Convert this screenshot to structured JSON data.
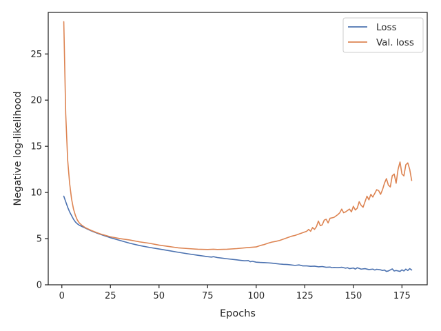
{
  "chart_data": {
    "type": "line",
    "title": "",
    "xlabel": "Epochs",
    "ylabel": "Negative log-likelihood",
    "xlim": [
      -7,
      188
    ],
    "ylim": [
      0,
      29.5
    ],
    "xticks": [
      0,
      25,
      50,
      75,
      100,
      125,
      150,
      175
    ],
    "yticks": [
      0,
      5,
      10,
      15,
      20,
      25
    ],
    "grid": false,
    "legend_position": "top-right",
    "series": [
      {
        "name": "Loss",
        "color": "#4c72b0",
        "x": [
          1,
          2,
          3,
          4,
          5,
          6,
          7,
          8,
          9,
          10,
          12,
          15,
          18,
          20,
          25,
          30,
          35,
          40,
          45,
          50,
          55,
          60,
          65,
          70,
          75,
          77,
          78,
          80,
          82,
          85,
          88,
          90,
          92,
          94,
          96,
          97,
          98,
          100,
          102,
          104,
          106,
          108,
          110,
          112,
          114,
          116,
          118,
          120,
          122,
          124,
          126,
          128,
          130,
          132,
          134,
          136,
          138,
          139,
          140,
          142,
          144,
          146,
          147,
          148,
          150,
          151,
          152,
          154,
          156,
          158,
          160,
          161,
          162,
          164,
          165,
          166,
          167,
          168,
          170,
          171,
          172,
          174,
          175,
          176,
          177,
          178,
          179,
          180
        ],
        "y": [
          9.6,
          9.0,
          8.4,
          7.9,
          7.5,
          7.1,
          6.8,
          6.6,
          6.45,
          6.35,
          6.15,
          5.85,
          5.6,
          5.45,
          5.1,
          4.8,
          4.5,
          4.25,
          4.05,
          3.88,
          3.7,
          3.52,
          3.35,
          3.2,
          3.05,
          3.0,
          3.05,
          2.95,
          2.9,
          2.82,
          2.75,
          2.7,
          2.65,
          2.6,
          2.62,
          2.5,
          2.55,
          2.45,
          2.42,
          2.4,
          2.38,
          2.35,
          2.3,
          2.25,
          2.22,
          2.2,
          2.15,
          2.1,
          2.15,
          2.05,
          2.05,
          2.0,
          2.02,
          1.95,
          1.98,
          1.9,
          1.92,
          1.85,
          1.88,
          1.85,
          1.9,
          1.8,
          1.85,
          1.75,
          1.82,
          1.7,
          1.85,
          1.7,
          1.75,
          1.65,
          1.7,
          1.6,
          1.68,
          1.62,
          1.55,
          1.6,
          1.45,
          1.5,
          1.72,
          1.5,
          1.55,
          1.45,
          1.62,
          1.5,
          1.7,
          1.55,
          1.75,
          1.6
        ]
      },
      {
        "name": "Val. loss",
        "color": "#dd8452",
        "x": [
          1,
          2,
          3,
          4,
          5,
          6,
          7,
          8,
          9,
          10,
          12,
          15,
          18,
          20,
          25,
          30,
          35,
          40,
          45,
          50,
          55,
          60,
          65,
          70,
          75,
          78,
          80,
          85,
          90,
          95,
          100,
          102,
          104,
          106,
          108,
          110,
          112,
          114,
          116,
          118,
          120,
          122,
          124,
          126,
          127,
          128,
          129,
          130,
          131,
          132,
          133,
          134,
          135,
          136,
          137,
          138,
          140,
          142,
          143,
          144,
          145,
          146,
          148,
          149,
          150,
          151,
          152,
          153,
          154,
          155,
          156,
          157,
          158,
          159,
          160,
          161,
          162,
          163,
          164,
          165,
          166,
          167,
          168,
          169,
          170,
          171,
          172,
          173,
          174,
          175,
          176,
          177,
          178,
          179,
          180
        ],
        "y": [
          28.5,
          18.5,
          13.5,
          11.0,
          9.3,
          8.2,
          7.5,
          7.0,
          6.7,
          6.5,
          6.2,
          5.9,
          5.65,
          5.5,
          5.2,
          5.0,
          4.85,
          4.65,
          4.5,
          4.3,
          4.15,
          4.0,
          3.92,
          3.85,
          3.82,
          3.85,
          3.82,
          3.85,
          3.92,
          4.02,
          4.1,
          4.25,
          4.35,
          4.5,
          4.62,
          4.7,
          4.8,
          4.95,
          5.1,
          5.25,
          5.35,
          5.5,
          5.65,
          5.8,
          6.0,
          5.8,
          6.2,
          6.0,
          6.3,
          6.9,
          6.4,
          6.5,
          7.0,
          7.1,
          6.7,
          7.2,
          7.3,
          7.6,
          7.8,
          8.2,
          7.8,
          7.9,
          8.2,
          7.9,
          8.5,
          8.1,
          8.3,
          9.0,
          8.6,
          8.4,
          9.0,
          9.6,
          9.2,
          9.8,
          9.5,
          9.9,
          10.3,
          10.2,
          9.8,
          10.3,
          11.0,
          11.5,
          10.8,
          10.6,
          11.8,
          12.0,
          11.0,
          12.5,
          13.3,
          12.0,
          11.8,
          13.0,
          13.2,
          12.5,
          11.3
        ]
      }
    ]
  }
}
